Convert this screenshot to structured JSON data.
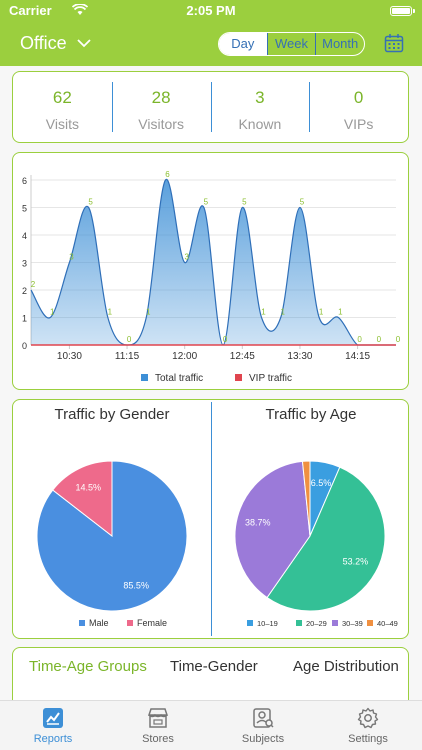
{
  "status": {
    "carrier": "Carrier",
    "time": "2:05 PM"
  },
  "header": {
    "title": "Office",
    "periods": [
      "Day",
      "Week",
      "Month"
    ],
    "selected_period": "Day"
  },
  "stats": [
    {
      "value": "62",
      "label": "Visits"
    },
    {
      "value": "28",
      "label": "Visitors"
    },
    {
      "value": "3",
      "label": "Known"
    },
    {
      "value": "0",
      "label": "VIPs"
    }
  ],
  "chart_data": [
    {
      "type": "area",
      "x_ticks": [
        "10:30",
        "11:15",
        "12:00",
        "12:45",
        "13:30",
        "14:15"
      ],
      "y_ticks": [
        "0",
        "1",
        "2",
        "3",
        "4",
        "5",
        "6"
      ],
      "ylim": [
        0,
        6
      ],
      "series": [
        {
          "name": "Total traffic",
          "color": "#3d8fd6",
          "values": [
            2,
            1,
            3,
            5,
            1,
            0,
            1,
            6,
            3,
            5,
            0,
            5,
            1,
            1,
            5,
            1,
            1,
            0,
            0,
            0
          ]
        },
        {
          "name": "VIP traffic",
          "color": "#e0454f",
          "values": [
            0,
            0,
            0,
            0,
            0,
            0,
            0,
            0,
            0,
            0,
            0,
            0,
            0,
            0,
            0,
            0,
            0,
            0,
            0,
            0
          ]
        }
      ],
      "data_labels": [
        "2",
        "1",
        "3",
        "5",
        "1",
        "0",
        "1",
        "6",
        "3",
        "5",
        "0",
        "5",
        "1",
        "1",
        "5",
        "1",
        "1",
        "0",
        "0",
        "0"
      ]
    },
    {
      "type": "pie",
      "title": "Traffic by Gender",
      "slices": [
        {
          "label": "Male",
          "value": 85.5,
          "display": "85.5%",
          "color": "#4a8fe0"
        },
        {
          "label": "Female",
          "value": 14.5,
          "display": "14.5%",
          "color": "#ee6a8b"
        }
      ]
    },
    {
      "type": "pie",
      "title": "Traffic by Age",
      "slices": [
        {
          "label": "10–19",
          "value": 6.5,
          "display": "6.5%",
          "color": "#3a9ee0"
        },
        {
          "label": "20–29",
          "value": 53.2,
          "display": "53.2%",
          "color": "#34c096"
        },
        {
          "label": "30–39",
          "value": 38.7,
          "display": "38.7%",
          "color": "#9b7ad9"
        },
        {
          "label": "40–49",
          "value": 1.6,
          "display": "",
          "color": "#f09040"
        }
      ]
    }
  ],
  "subtabs": [
    "Time-Age Groups",
    "Time-Gender",
    "Age Distribution"
  ],
  "tabbar": [
    {
      "label": "Reports",
      "icon": "chart-icon",
      "active": true
    },
    {
      "label": "Stores",
      "icon": "store-icon",
      "active": false
    },
    {
      "label": "Subjects",
      "icon": "subjects-icon",
      "active": false
    },
    {
      "label": "Settings",
      "icon": "gear-icon",
      "active": false
    }
  ],
  "colors": {
    "accent": "#9bcf3e",
    "primary": "#3d8fd6",
    "green_text": "#7bb52a"
  }
}
